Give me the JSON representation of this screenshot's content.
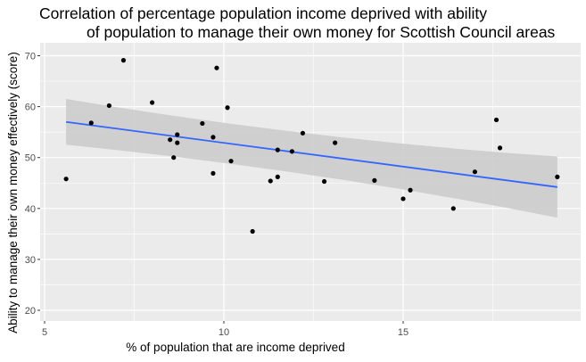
{
  "title_lines": [
    "Correlation of percentage population income deprived with ability",
    "of population to manage their own money for Scottish Council areas"
  ],
  "chart_data": {
    "type": "scatter",
    "title": "Correlation of percentage population income deprived with ability of population to manage their own money for Scottish Council areas",
    "xlabel": "% of population that are income deprived",
    "ylabel": "Ability to manage their own money effectively (score)",
    "xlim": [
      5,
      20
    ],
    "ylim": [
      18,
      72
    ],
    "x_ticks": [
      5,
      10,
      15
    ],
    "y_ticks": [
      20,
      30,
      40,
      50,
      60,
      70
    ],
    "grid": true,
    "points": [
      {
        "x": 5.6,
        "y": 45.8
      },
      {
        "x": 6.3,
        "y": 56.8
      },
      {
        "x": 6.8,
        "y": 60.2
      },
      {
        "x": 7.2,
        "y": 69.1
      },
      {
        "x": 8.0,
        "y": 60.8
      },
      {
        "x": 8.5,
        "y": 53.5
      },
      {
        "x": 8.6,
        "y": 50.0
      },
      {
        "x": 8.7,
        "y": 54.5
      },
      {
        "x": 8.7,
        "y": 52.9
      },
      {
        "x": 9.4,
        "y": 56.7
      },
      {
        "x": 9.7,
        "y": 54.0
      },
      {
        "x": 9.7,
        "y": 46.9
      },
      {
        "x": 9.8,
        "y": 67.6
      },
      {
        "x": 10.1,
        "y": 59.8
      },
      {
        "x": 10.2,
        "y": 49.3
      },
      {
        "x": 10.8,
        "y": 35.5
      },
      {
        "x": 11.3,
        "y": 45.4
      },
      {
        "x": 11.5,
        "y": 46.2
      },
      {
        "x": 11.5,
        "y": 51.5
      },
      {
        "x": 11.9,
        "y": 51.2
      },
      {
        "x": 12.2,
        "y": 54.8
      },
      {
        "x": 12.8,
        "y": 45.3
      },
      {
        "x": 13.1,
        "y": 52.9
      },
      {
        "x": 14.2,
        "y": 45.5
      },
      {
        "x": 15.0,
        "y": 41.9
      },
      {
        "x": 15.2,
        "y": 43.6
      },
      {
        "x": 16.4,
        "y": 40.0
      },
      {
        "x": 17.0,
        "y": 47.2
      },
      {
        "x": 17.6,
        "y": 57.4
      },
      {
        "x": 17.7,
        "y": 51.9
      },
      {
        "x": 19.3,
        "y": 46.2
      }
    ],
    "trend": {
      "method": "lm",
      "x": [
        5.6,
        19.3
      ],
      "y": [
        57.0,
        44.2
      ],
      "band_lower": [
        52.5,
        38.2
      ],
      "band_upper": [
        61.5,
        50.2
      ]
    },
    "colors": {
      "panel": "#ebebeb",
      "grid": "#ffffff",
      "point": "#000000",
      "line": "#3366ff",
      "band": "#cccccc"
    }
  }
}
